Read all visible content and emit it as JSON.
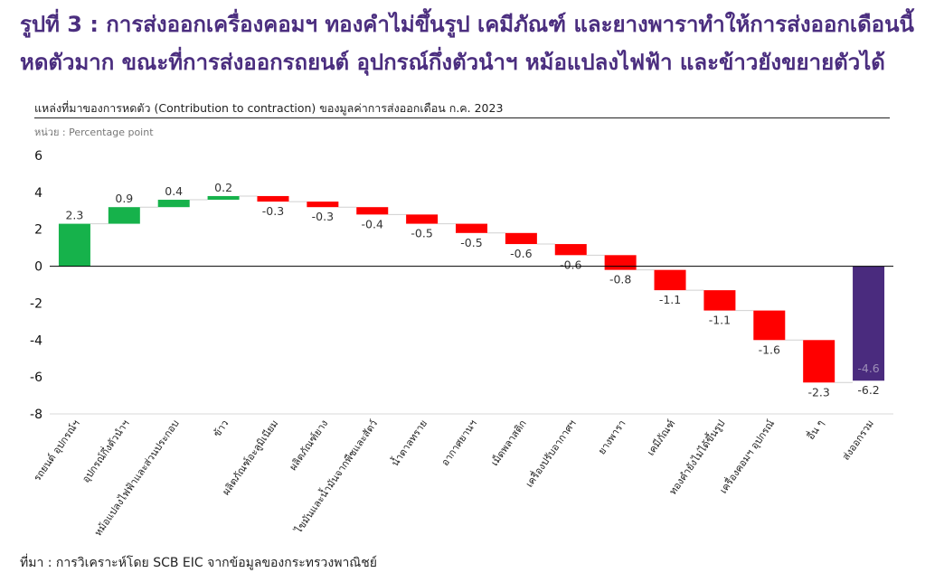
{
  "header": {
    "headline_line1": "รูปที่ 3 : การส่งออกเครื่องคอมฯ ทองคำไม่ขึ้นรูป เคมีภัณฑ์ และยางพาราทำให้การส่งออกเดือนนี้",
    "headline_line2": "หดตัวมาก ขณะที่การส่งออกรถยนต์ อุปกรณ์กึ่งตัวนำฯ หม้อแปลงไฟฟ้า และข้าวยังขยายตัวได้",
    "subtitle": "แหล่งที่มาของการหดตัว (Contribution to contraction) ของมูลค่าการส่งออกเดือน ก.ค. 2023",
    "unit": "หน่วย : Percentage point"
  },
  "footer": {
    "source": "ที่มา : การวิเคราะห์โดย SCB EIC จากข้อมูลของกระทรวงพาณิชย์"
  },
  "colors": {
    "positive": "#16b24b",
    "negative": "#ff0000",
    "total": "#4a2b7e",
    "axis": "#000000",
    "label": "#333333"
  },
  "chart_data": {
    "type": "waterfall",
    "ylim": [
      -8,
      6
    ],
    "yticks": [
      6,
      4,
      2,
      0,
      -2,
      -4,
      -6,
      -8
    ],
    "categories": [
      "รถยนต์ อุปกรณ์ฯ",
      "อุปกรณ์กึ่งตัวนำฯ",
      "หม้อแปลงไฟฟ้าและส่วนประกอบ",
      "ข้าว",
      "ผลิตภัณฑ์อะลูมิเนียม",
      "ผลิตภัณฑ์ยาง",
      "ไขมันและน้ำมันจากพืชและสัตว์",
      "น้ำตาลทราย",
      "อากาศยานฯ",
      "เม็ดพลาสติก",
      "เครื่องปรับอากาศฯ",
      "ยางพารา",
      "เคมีภัณฑ์",
      "ทองคำยังไม่ได้ขึ้นรูป",
      "เครื่องคอมฯ อุปกรณ์",
      "อื่น ๆ",
      "ส่งออกรวม"
    ],
    "values": [
      2.3,
      0.9,
      0.4,
      0.2,
      -0.3,
      -0.3,
      -0.4,
      -0.5,
      -0.5,
      -0.6,
      -0.6,
      -0.8,
      -1.1,
      -1.1,
      -1.6,
      -2.3,
      -6.2
    ],
    "value_labels": [
      "2.3",
      "0.9",
      "0.4",
      "0.2",
      "-0.3",
      "-0.3",
      "-0.4",
      "-0.5",
      "-0.5",
      "-0.6",
      "-0.6",
      "-0.8",
      "-1.1",
      "-1.1",
      "-1.6",
      "-2.3",
      "-6.2"
    ],
    "total_index": 16,
    "total_inner_label": "-4.6"
  }
}
